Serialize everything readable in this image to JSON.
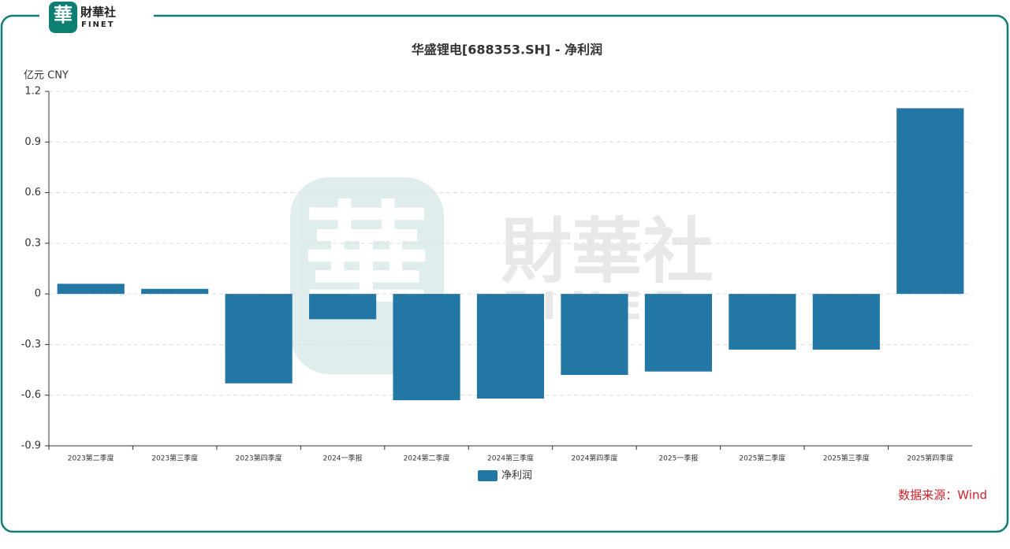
{
  "logo": {
    "mark": "華",
    "name": "財華社",
    "sub": "FINET"
  },
  "source": "数据来源：Wind",
  "chart_data": {
    "type": "bar",
    "title": "华盛锂电[688353.SH] - 净利润",
    "y_unit": "亿元  CNY",
    "categories": [
      "2023第二季度",
      "2023第三季度",
      "2023第四季度",
      "2024一季报",
      "2024第二季度",
      "2024第三季度",
      "2024第四季度",
      "2025一季报",
      "2025第二季度",
      "2025第三季度",
      "2025第四季度"
    ],
    "series": [
      {
        "name": "净利润",
        "color": "#2377a4",
        "values": [
          0.06,
          0.03,
          -0.53,
          -0.15,
          -0.63,
          -0.62,
          -0.48,
          -0.46,
          -0.33,
          -0.33,
          1.1
        ]
      }
    ],
    "ylim": [
      -0.9,
      1.2
    ],
    "yticks": [
      -0.9,
      -0.6,
      -0.3,
      0,
      0.3,
      0.6,
      0.9,
      1.2
    ],
    "grid": true
  }
}
